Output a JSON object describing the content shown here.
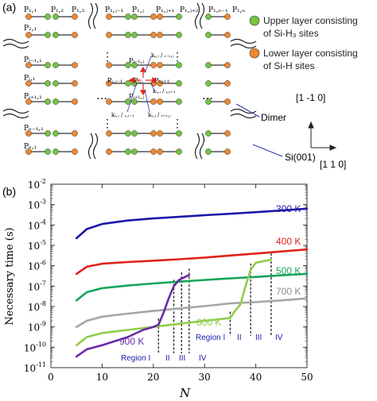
{
  "panel_a": {
    "label": "(a)",
    "legend": [
      {
        "line1": "Upper layer consisting",
        "line2": "of Si-H₃ sites",
        "color": "#72c442"
      },
      {
        "line1": "Lower layer consisting",
        "line2": "of Si-H sites",
        "color": "#f0872f"
      }
    ],
    "row_labels": [
      "P₁,₁",
      "P₂,₁",
      "Pᵢ₋₁,₁",
      "Pᵢ,₁",
      "Pᵢ₊₁,₁",
      "Pₙ₋₁,₁",
      "Pₙ,₁"
    ],
    "top_labels": [
      "P₁,₂",
      "P₁,₃",
      "P₁,ⱼ₋₁",
      "P₁,ⱼ",
      "P₁,ⱼ₊₁",
      "P₁,ⱼ₊₂",
      "P₁,ₙ₋₁",
      "P₁,ₙ"
    ],
    "inner_labels": [
      "Pᵢ₋₁,ⱼ",
      "Pᵢ,ⱼ₋₁",
      "Pᵢ,ⱼ",
      "Pᵢ,ⱼ₊₁",
      "Pᵢ₊₁,ⱼ"
    ],
    "rate_labels": [
      "kᵢ,ⱼ / ᵢ₋₁,ⱼ",
      "kᵢ,ⱼ / ᵢ,ⱼ₊₁",
      "kᵢ,ⱼ / ᵢ,ⱼ₋₁",
      "kᵢ,ⱼ / ᵢ₊₁,ⱼ"
    ],
    "annotations": {
      "dimer": "Dimer",
      "substrate": "Si(001)"
    },
    "axes": {
      "vertical": "[1 -1 0]",
      "horizontal": "[1 1 0]"
    },
    "ellipsis": "…",
    "vdots": "⋮"
  },
  "panel_b": {
    "label": "(b)",
    "chart_data": {
      "type": "line",
      "xlabel": "N",
      "ylabel": "Necessary time (s)",
      "xlim": [
        0,
        50
      ],
      "ylim_log10": [
        -11,
        -2
      ],
      "y_scale": "log",
      "x_ticks": [
        "0",
        "10",
        "20",
        "30",
        "40",
        "50"
      ],
      "y_ticks": [
        {
          "base": "10",
          "exp": "-2"
        },
        {
          "base": "10",
          "exp": "-3"
        },
        {
          "base": "10",
          "exp": "-4"
        },
        {
          "base": "10",
          "exp": "-5"
        },
        {
          "base": "10",
          "exp": "-6"
        },
        {
          "base": "10",
          "exp": "-7"
        },
        {
          "base": "10",
          "exp": "-8"
        },
        {
          "base": "10",
          "exp": "-9"
        },
        {
          "base": "10",
          "exp": "-10"
        },
        {
          "base": "10",
          "exp": "-11"
        }
      ],
      "series": [
        {
          "name": "300 K",
          "color": "#1a1aa8",
          "x": [
            5,
            7,
            10,
            15,
            20,
            25,
            30,
            35,
            40,
            45,
            50
          ],
          "log10_y": [
            -4.65,
            -4.2,
            -3.95,
            -3.78,
            -3.68,
            -3.6,
            -3.52,
            -3.45,
            -3.37,
            -3.29,
            -3.2
          ]
        },
        {
          "name": "400 K",
          "color": "#e0221c",
          "x": [
            5,
            7,
            10,
            15,
            20,
            25,
            30,
            35,
            40,
            45,
            50
          ],
          "log10_y": [
            -6.4,
            -6.05,
            -5.9,
            -5.82,
            -5.75,
            -5.68,
            -5.6,
            -5.5,
            -5.4,
            -5.3,
            -5.2
          ]
        },
        {
          "name": "500 K",
          "color": "#16a65a",
          "x": [
            5,
            7,
            10,
            15,
            20,
            25,
            30,
            35,
            40,
            45,
            50
          ],
          "log10_y": [
            -7.7,
            -7.3,
            -7.1,
            -6.97,
            -6.87,
            -6.78,
            -6.7,
            -6.62,
            -6.55,
            -6.47,
            -6.4
          ]
        },
        {
          "name": "700 K",
          "color": "#a6a6a6",
          "x": [
            5,
            7,
            10,
            15,
            20,
            25,
            30,
            35,
            40,
            45,
            50
          ],
          "log10_y": [
            -9.0,
            -8.7,
            -8.5,
            -8.35,
            -8.22,
            -8.1,
            -7.98,
            -7.85,
            -7.78,
            -7.7,
            -7.6
          ]
        },
        {
          "name": "800 K",
          "color": "#8fce4a",
          "x": [
            5,
            7,
            10,
            15,
            20,
            25,
            30,
            35,
            36,
            37,
            38,
            39,
            40,
            43
          ],
          "log10_y": [
            -9.9,
            -9.5,
            -9.3,
            -9.15,
            -9.0,
            -8.85,
            -8.7,
            -8.57,
            -8.2,
            -7.9,
            -7.0,
            -6.2,
            -5.85,
            -5.7
          ]
        },
        {
          "name": "900 K",
          "color": "#6a2aa8",
          "x": [
            5,
            7,
            10,
            15,
            18,
            20,
            21,
            22,
            23,
            24,
            25,
            27
          ],
          "log10_y": [
            -10.45,
            -10.1,
            -9.9,
            -9.5,
            -9.15,
            -9.0,
            -8.9,
            -8.3,
            -7.6,
            -7.0,
            -6.7,
            -6.45
          ]
        }
      ],
      "region_lines_900K_x": [
        21,
        24,
        25.5,
        27
      ],
      "region_lines_800K_x": [
        35,
        39,
        43
      ],
      "region_labels_900K": [
        "Region I",
        "II",
        "III",
        "IV"
      ],
      "region_labels_800K": [
        "Region I",
        "II",
        "III",
        "IV"
      ]
    }
  }
}
